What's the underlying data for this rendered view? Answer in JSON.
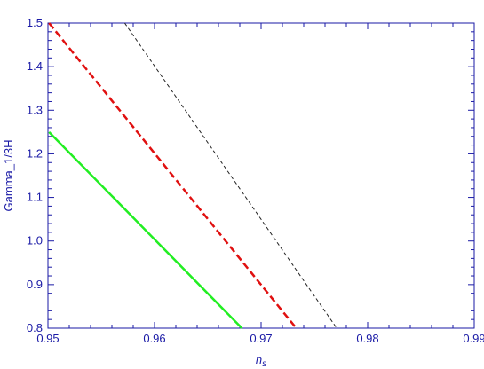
{
  "chart_data": {
    "type": "line",
    "xlabel": "n",
    "xlabel_sub": "s",
    "ylabel": "Gamma_1/3H",
    "xlim": [
      0.95,
      0.99
    ],
    "ylim": [
      0.8,
      1.5
    ],
    "x_ticks": [
      0.95,
      0.96,
      0.97,
      0.98,
      0.99
    ],
    "x_tick_labels": [
      "0.95",
      "0.96",
      "0.97",
      "0.98",
      "0.99"
    ],
    "y_ticks": [
      0.8,
      0.9,
      1.0,
      1.1,
      1.2,
      1.3,
      1.4,
      1.5
    ],
    "y_tick_labels": [
      "0.8",
      "0.9",
      "1.0",
      "1.1",
      "1.2",
      "1.3",
      "1.4",
      "1.5"
    ],
    "grid": false,
    "series": [
      {
        "x": [
          0.9501,
          0.9682
        ],
        "y": [
          1.25,
          0.8
        ],
        "color": "#22ee22",
        "style": "solid"
      },
      {
        "x": [
          0.9501,
          0.9733
        ],
        "y": [
          1.5,
          0.8
        ],
        "color": "#e01010",
        "style": "dashed"
      },
      {
        "x": [
          0.9572,
          0.9771
        ],
        "y": [
          1.5,
          0.8
        ],
        "color": "#222222",
        "style": "dashed-thin"
      }
    ]
  }
}
